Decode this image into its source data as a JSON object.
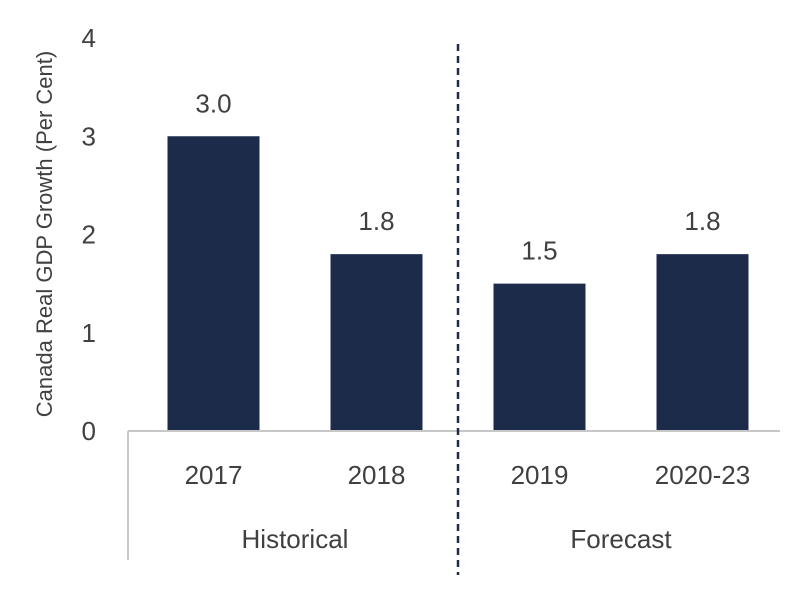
{
  "chart_data": {
    "type": "bar",
    "ylabel": "Canada Real GDP Growth (Per Cent)",
    "ylim": [
      0,
      4
    ],
    "yticks": [
      0,
      1,
      2,
      3,
      4
    ],
    "categories": [
      "2017",
      "2018",
      "2019",
      "2020-23"
    ],
    "values": [
      3.0,
      1.8,
      1.5,
      1.8
    ],
    "data_labels": [
      "3.0",
      "1.8",
      "1.5",
      "1.8"
    ],
    "groups": [
      {
        "label": "Historical",
        "categories": [
          "2017",
          "2018"
        ]
      },
      {
        "label": "Forecast",
        "categories": [
          "2019",
          "2020-23"
        ]
      }
    ],
    "divider": "dashed line between 2018 and 2019",
    "grid": false,
    "legend": "none",
    "colors": {
      "bar": "#1c2b4a",
      "divider": "#1c2b4a",
      "axis": "#c8c8c8",
      "text": "#404040"
    }
  }
}
